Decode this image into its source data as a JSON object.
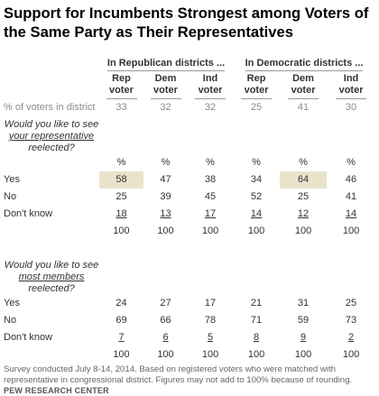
{
  "title": "Support for Incumbents Strongest among Voters of the Same Party as Their Representatives",
  "groups": {
    "rep_districts": "In Republican districts ...",
    "dem_districts": "In Democratic districts ..."
  },
  "columns": [
    "Rep voter",
    "Dem voter",
    "Ind voter",
    "Rep voter",
    "Dem voter",
    "Ind voter"
  ],
  "column_lines": [
    [
      "Rep",
      "voter"
    ],
    [
      "Dem",
      "voter"
    ],
    [
      "Ind",
      "voter"
    ],
    [
      "Rep",
      "voter"
    ],
    [
      "Dem",
      "voter"
    ],
    [
      "Ind",
      "voter"
    ]
  ],
  "share_row": {
    "label": "% of voters in district",
    "values": [
      "33",
      "32",
      "32",
      "25",
      "41",
      "30"
    ]
  },
  "q1": {
    "pre": "Would you like to see ",
    "emph": "your representative",
    "post": " reelected?"
  },
  "pct_row": [
    "%",
    "%",
    "%",
    "%",
    "%",
    "%"
  ],
  "q2": {
    "pre": "Would you like to see ",
    "emph": "most members",
    "post": " reelected?"
  },
  "chart_data": {
    "type": "table",
    "title": "Support for Incumbents Strongest among Voters of the Same Party as Their Representatives",
    "column_groups": [
      "In Republican districts ...",
      "In Democratic districts ..."
    ],
    "columns": [
      "Rep voter",
      "Dem voter",
      "Ind voter",
      "Rep voter",
      "Dem voter",
      "Ind voter"
    ],
    "share_of_voters_in_district": [
      33,
      32,
      32,
      25,
      41,
      30
    ],
    "highlighted": [
      {
        "question": "your_representative",
        "row": "Yes",
        "columns": [
          0,
          4
        ]
      }
    ],
    "sections": [
      {
        "id": "your_representative",
        "question": "Would you like to see your representative reelected?",
        "unit": "%",
        "rows": [
          {
            "label": "Yes",
            "values": [
              58,
              47,
              38,
              34,
              64,
              46
            ]
          },
          {
            "label": "No",
            "values": [
              25,
              39,
              45,
              52,
              25,
              41
            ]
          },
          {
            "label": "Don't know",
            "values": [
              18,
              13,
              17,
              14,
              12,
              14
            ]
          },
          {
            "label": "",
            "values": [
              100,
              100,
              100,
              100,
              100,
              100
            ]
          }
        ]
      },
      {
        "id": "most_members",
        "question": "Would you like to see most members reelected?",
        "unit": "%",
        "rows": [
          {
            "label": "Yes",
            "values": [
              24,
              27,
              17,
              21,
              31,
              25
            ]
          },
          {
            "label": "No",
            "values": [
              69,
              66,
              78,
              71,
              59,
              73
            ]
          },
          {
            "label": "Don't know",
            "values": [
              7,
              6,
              5,
              8,
              9,
              2
            ]
          },
          {
            "label": "",
            "values": [
              100,
              100,
              100,
              100,
              100,
              100
            ]
          }
        ]
      }
    ]
  },
  "colors": {
    "highlight": "#e9e3cc",
    "share_text": "#8a8a8a",
    "note_text": "#666666"
  },
  "note": "Survey conducted July 8-14, 2014. Based on registered voters who were matched with representative in congressional district. Figures may not add to 100% because of rounding.",
  "source": "PEW RESEARCH CENTER"
}
